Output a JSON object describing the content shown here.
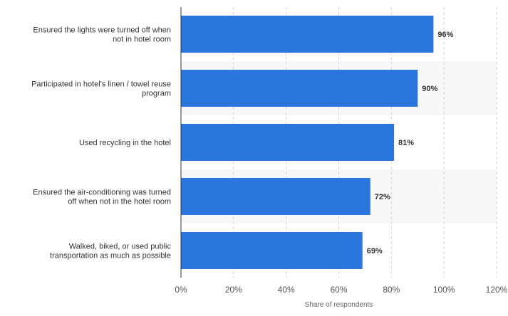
{
  "chart_data": {
    "type": "bar",
    "orientation": "horizontal",
    "title": "",
    "xlabel": "Share of respondents",
    "ylabel": "",
    "categories": [
      [
        "Ensured the lights were turned off when",
        "not in hotel room"
      ],
      [
        "Participated in hotel's linen / towel reuse",
        "program"
      ],
      [
        "Used recycling in the hotel"
      ],
      [
        "Ensured the air-conditioning was turned",
        "off when not in the hotel room"
      ],
      [
        "Walked, biked, or used public",
        "transportation as much as possible"
      ]
    ],
    "values": [
      96,
      90,
      81,
      72,
      69
    ],
    "value_labels": [
      "96%",
      "90%",
      "81%",
      "72%",
      "69%"
    ],
    "xlim": [
      0,
      120
    ],
    "xticks": [
      0,
      20,
      40,
      60,
      80,
      100,
      120
    ],
    "xtick_labels": [
      "0%",
      "20%",
      "40%",
      "60%",
      "80%",
      "100%",
      "120%"
    ],
    "grid": "vertical dashed",
    "legend": "none",
    "colors": {
      "bar": "#2a76dd",
      "band": "#f7f7f7",
      "grid": "#d4d4d4",
      "axis": "#333333"
    }
  }
}
